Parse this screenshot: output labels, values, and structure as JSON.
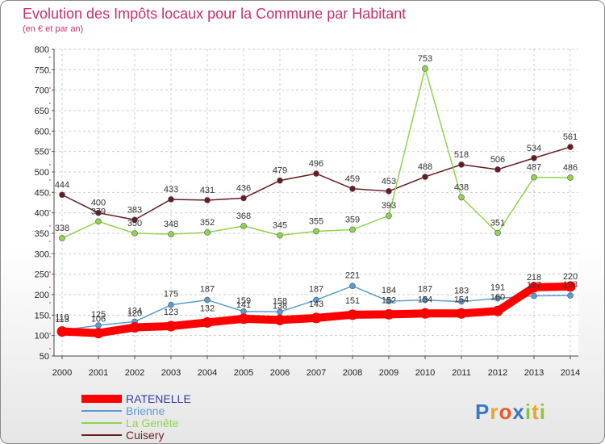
{
  "title": "Evolution des Impôts locaux pour la Commune par Habitant",
  "subtitle": "(en € et par an)",
  "watermark": "Proxiti",
  "chart_data": {
    "type": "line",
    "x": [
      2000,
      2001,
      2002,
      2003,
      2004,
      2005,
      2006,
      2007,
      2008,
      2009,
      2010,
      2011,
      2012,
      2013,
      2014
    ],
    "ylim": [
      50,
      800
    ],
    "yticks": [
      50,
      100,
      150,
      200,
      250,
      300,
      350,
      400,
      450,
      500,
      550,
      600,
      650,
      700,
      750,
      800
    ],
    "grid": true,
    "legend_position": "bottom-left",
    "series": [
      {
        "name": "RATENELLE",
        "color": "#ff0000",
        "highlight": true,
        "values": [
          110,
          106,
          120,
          123,
          132,
          141,
          138,
          143,
          151,
          152,
          154,
          154,
          160,
          218,
          220
        ]
      },
      {
        "name": "Brienne",
        "color": "#5b9bd5",
        "values": [
          113,
          125,
          134,
          175,
          187,
          159,
          158,
          187,
          221,
          184,
          187,
          183,
          191,
          197,
          198
        ]
      },
      {
        "name": "La Genête",
        "color": "#8fd44a",
        "values": [
          338,
          379,
          350,
          348,
          352,
          368,
          345,
          355,
          359,
          393,
          753,
          438,
          351,
          487,
          486
        ]
      },
      {
        "name": "Cuisery",
        "color": "#6b1a24",
        "values": [
          444,
          400,
          383,
          433,
          431,
          436,
          479,
          496,
          459,
          453,
          488,
          518,
          506,
          534,
          561
        ]
      }
    ]
  }
}
